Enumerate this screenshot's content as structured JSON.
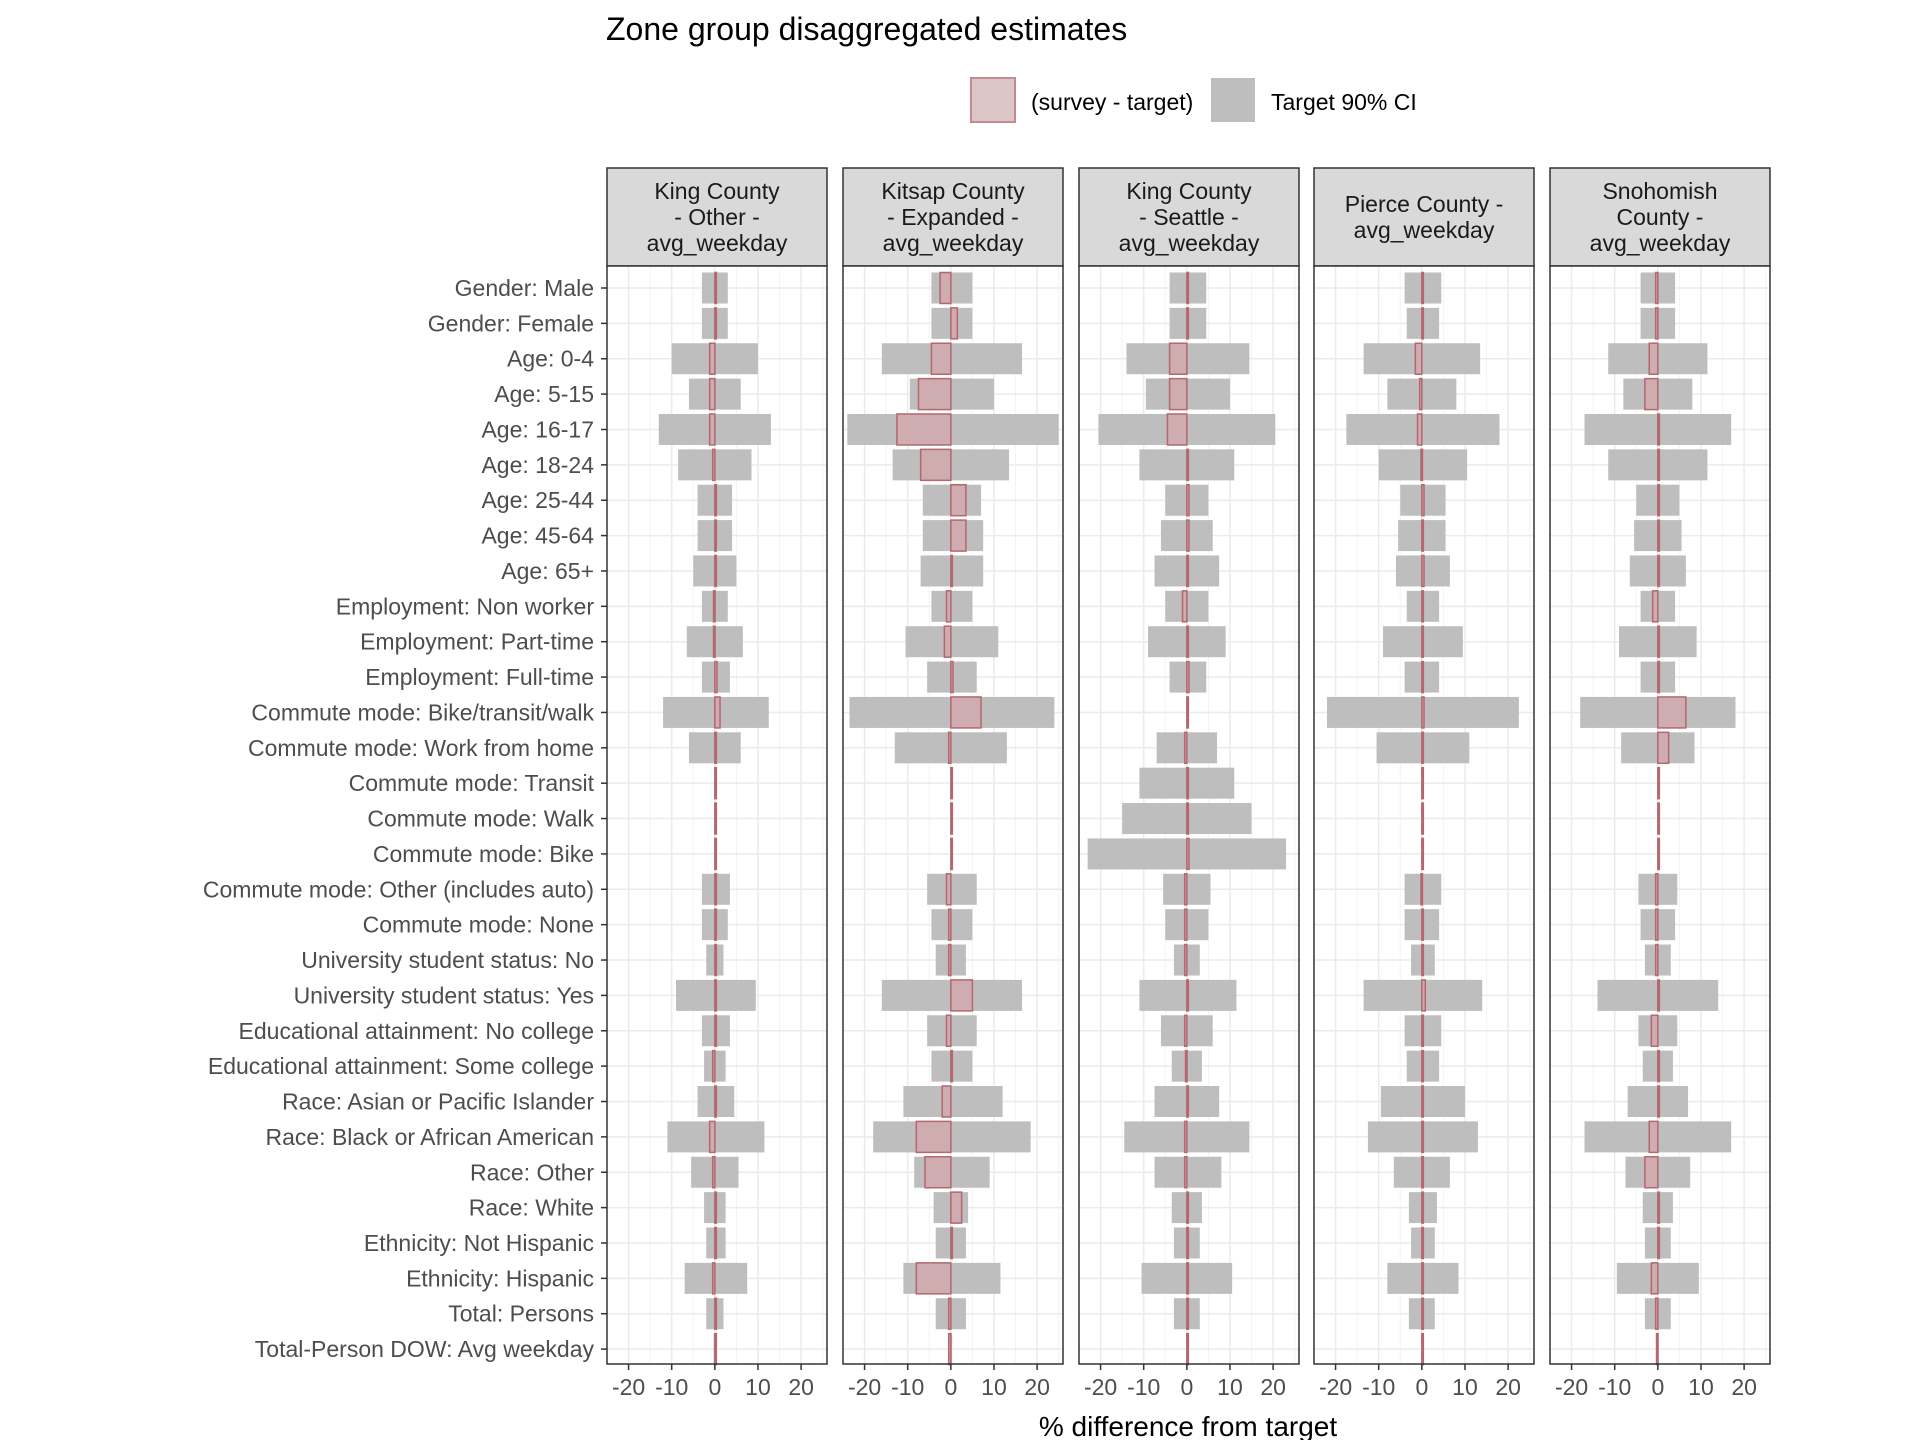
{
  "chart_data": {
    "type": "bar",
    "title": "Zone group disaggregated estimates",
    "xlabel": "% difference from target",
    "ylabel": "",
    "xlim": [
      -25,
      26
    ],
    "x_ticks": [
      -20,
      -10,
      0,
      10,
      20
    ],
    "x_tick_labels": [
      "-20",
      "-10",
      "0",
      "10",
      "20"
    ],
    "grid": true,
    "legend_position": "top",
    "legend": [
      {
        "name": "(survey - target)",
        "fill": "#dcc6c8",
        "stroke": "#c48a90"
      },
      {
        "name": "Target 90% CI",
        "fill": "#bebebe",
        "stroke": "#bebebe"
      }
    ],
    "colors": {
      "ci_fill": "#bebebe",
      "diff_fill": "#d4a5aa",
      "diff_stroke": "#b5666f",
      "strip_fill": "#d9d9d9",
      "grid": "#ebebeb",
      "panel_border": "#333333"
    },
    "categories": [
      "Gender: Male",
      "Gender: Female",
      "Age: 0-4",
      "Age: 5-15",
      "Age: 16-17",
      "Age: 18-24",
      "Age: 25-44",
      "Age: 45-64",
      "Age: 65+",
      "Employment: Non worker",
      "Employment: Part-time",
      "Employment: Full-time",
      "Commute mode: Bike/transit/walk",
      "Commute mode: Work from home",
      "Commute mode: Transit",
      "Commute mode: Walk",
      "Commute mode: Bike",
      "Commute mode: Other (includes auto)",
      "Commute mode: None",
      "University student status: No",
      "University student status: Yes",
      "Educational attainment: No college",
      "Educational attainment: Some college",
      "Race: Asian or Pacific Islander",
      "Race: Black or African American",
      "Race: Other",
      "Race: White",
      "Ethnicity: Not Hispanic",
      "Ethnicity: Hispanic",
      "Total: Persons",
      "Total-Person DOW: Avg weekday"
    ],
    "panels": [
      {
        "label_lines": [
          "King County",
          "- Other -",
          "avg_weekday"
        ],
        "ci": [
          [
            -3,
            3
          ],
          [
            -3,
            3
          ],
          [
            -10,
            10
          ],
          [
            -6,
            6
          ],
          [
            -13,
            13
          ],
          [
            -8.5,
            8.5
          ],
          [
            -4,
            4
          ],
          [
            -4,
            4
          ],
          [
            -5,
            5
          ],
          [
            -3,
            3
          ],
          [
            -6.5,
            6.5
          ],
          [
            -3,
            3.5
          ],
          [
            -12,
            12.5
          ],
          [
            -6,
            6
          ],
          null,
          null,
          null,
          [
            -3,
            3.5
          ],
          [
            -3,
            3
          ],
          [
            -2,
            2
          ],
          [
            -9,
            9.5
          ],
          [
            -3,
            3.5
          ],
          [
            -2.5,
            2.5
          ],
          [
            -4,
            4.5
          ],
          [
            -11,
            11.5
          ],
          [
            -5.5,
            5.5
          ],
          [
            -2.5,
            2.5
          ],
          [
            -2,
            2.5
          ],
          [
            -7,
            7.5
          ],
          [
            -2,
            2
          ],
          [
            -0.3,
            0.3
          ]
        ],
        "diff": [
          0.3,
          0.3,
          -1.2,
          -1.2,
          -1.2,
          -0.5,
          0.3,
          0.3,
          0.2,
          -0.3,
          -0.3,
          0.5,
          1.2,
          0.3,
          0.1,
          0.1,
          0.1,
          0.3,
          0.1,
          0.2,
          0.3,
          0.2,
          -0.5,
          0.3,
          -1.2,
          -0.5,
          0.2,
          0.1,
          -0.5,
          0.1,
          0.1
        ]
      },
      {
        "label_lines": [
          "Kitsap County",
          "- Expanded -",
          "avg_weekday"
        ],
        "ci": [
          [
            -4.5,
            5
          ],
          [
            -4.5,
            5
          ],
          [
            -16,
            16.5
          ],
          [
            -9.5,
            10
          ],
          [
            -24,
            25
          ],
          [
            -13.5,
            13.5
          ],
          [
            -6.5,
            7
          ],
          [
            -6.5,
            7.5
          ],
          [
            -7,
            7.5
          ],
          [
            -4.5,
            5
          ],
          [
            -10.5,
            11
          ],
          [
            -5.5,
            6
          ],
          [
            -23.5,
            24
          ],
          [
            -13,
            13
          ],
          null,
          null,
          null,
          [
            -5.5,
            6
          ],
          [
            -4.5,
            5
          ],
          [
            -3.5,
            3.5
          ],
          [
            -16,
            16.5
          ],
          [
            -5.5,
            6
          ],
          [
            -4.5,
            5
          ],
          [
            -11,
            12
          ],
          [
            -18,
            18.5
          ],
          [
            -8.5,
            9
          ],
          [
            -4,
            4
          ],
          [
            -3.5,
            3.5
          ],
          [
            -11,
            11.5
          ],
          [
            -3.5,
            3.5
          ],
          [
            -0.3,
            0.3
          ]
        ],
        "diff": [
          -2.5,
          1.5,
          -4.5,
          -7.5,
          -12.5,
          -7,
          3.5,
          3.5,
          0.2,
          -1,
          -1.5,
          0.5,
          7,
          -0.5,
          0.1,
          0.1,
          0.1,
          -1,
          -0.5,
          -0.5,
          5,
          -1,
          0.3,
          -2,
          -8,
          -6,
          2.5,
          0.2,
          -8,
          -0.5,
          -0.5
        ]
      },
      {
        "label_lines": [
          "King County",
          "- Seattle -",
          "avg_weekday"
        ],
        "ci": [
          [
            -4,
            4.5
          ],
          [
            -4,
            4.5
          ],
          [
            -14,
            14.5
          ],
          [
            -9.5,
            10
          ],
          [
            -20.5,
            20.5
          ],
          [
            -11,
            11
          ],
          [
            -5,
            5
          ],
          [
            -6,
            6
          ],
          [
            -7.5,
            7.5
          ],
          [
            -5,
            5
          ],
          [
            -9,
            9
          ],
          [
            -4,
            4.5
          ],
          null,
          [
            -7,
            7
          ],
          [
            -11,
            11
          ],
          [
            -15,
            15
          ],
          [
            -23,
            23
          ],
          [
            -5.5,
            5.5
          ],
          [
            -5,
            5
          ],
          [
            -3,
            3
          ],
          [
            -11,
            11.5
          ],
          [
            -6,
            6
          ],
          [
            -3.5,
            3.5
          ],
          [
            -7.5,
            7.5
          ],
          [
            -14.5,
            14.5
          ],
          [
            -7.5,
            8
          ],
          [
            -3.5,
            3.5
          ],
          [
            -3,
            3
          ],
          [
            -10.5,
            10.5
          ],
          [
            -3,
            3
          ],
          null
        ],
        "diff": [
          0.2,
          0.2,
          -4,
          -4,
          -4.5,
          0.3,
          0.5,
          0.5,
          0.2,
          -1,
          0.2,
          0.5,
          0.2,
          -0.5,
          0.3,
          0.3,
          0.5,
          -0.5,
          -0.5,
          -0.5,
          0.3,
          -0.5,
          -0.3,
          0.2,
          -0.5,
          -0.5,
          0.2,
          0.2,
          0.1,
          0.1,
          0.1
        ]
      },
      {
        "label_lines": [
          "Pierce County -",
          "avg_weekday"
        ],
        "ci": [
          [
            -4,
            4.5
          ],
          [
            -3.5,
            4
          ],
          [
            -13.5,
            13.5
          ],
          [
            -8,
            8
          ],
          [
            -17.5,
            18
          ],
          [
            -10,
            10.5
          ],
          [
            -5,
            5.5
          ],
          [
            -5.5,
            5.5
          ],
          [
            -6,
            6.5
          ],
          [
            -3.5,
            4
          ],
          [
            -9,
            9.5
          ],
          [
            -4,
            4
          ],
          [
            -22,
            22.5
          ],
          [
            -10.5,
            11
          ],
          null,
          null,
          null,
          [
            -4,
            4.5
          ],
          [
            -4,
            4
          ],
          [
            -2.5,
            3
          ],
          [
            -13.5,
            14
          ],
          [
            -4,
            4.5
          ],
          [
            -3.5,
            4
          ],
          [
            -9.5,
            10
          ],
          [
            -12.5,
            13
          ],
          [
            -6.5,
            6.5
          ],
          [
            -3,
            3.5
          ],
          [
            -2.5,
            3
          ],
          [
            -8,
            8.5
          ],
          [
            -3,
            3
          ],
          null
        ],
        "diff": [
          0.2,
          0.2,
          -1.5,
          -0.5,
          -1,
          -0.2,
          0.5,
          0.3,
          0.5,
          0.3,
          0.3,
          0.3,
          0.5,
          0.3,
          0.1,
          0.1,
          0.1,
          -0.2,
          0.2,
          0.2,
          0.8,
          0.2,
          0.2,
          0.2,
          0.1,
          0.2,
          0.2,
          0.2,
          0.1,
          0.1,
          0.1
        ]
      },
      {
        "label_lines": [
          "Snohomish",
          "County -",
          "avg_weekday"
        ],
        "ci": [
          [
            -4,
            4
          ],
          [
            -4,
            4
          ],
          [
            -11.5,
            11.5
          ],
          [
            -8,
            8
          ],
          [
            -17,
            17
          ],
          [
            -11.5,
            11.5
          ],
          [
            -5,
            5
          ],
          [
            -5.5,
            5.5
          ],
          [
            -6.5,
            6.5
          ],
          [
            -4,
            4
          ],
          [
            -9,
            9
          ],
          [
            -4,
            4
          ],
          [
            -18,
            18
          ],
          [
            -8.5,
            8.5
          ],
          null,
          null,
          null,
          [
            -4.5,
            4.5
          ],
          [
            -4,
            4
          ],
          [
            -3,
            3
          ],
          [
            -14,
            14
          ],
          [
            -4.5,
            4.5
          ],
          [
            -3.5,
            3.5
          ],
          [
            -7,
            7
          ],
          [
            -17,
            17
          ],
          [
            -7.5,
            7.5
          ],
          [
            -3.5,
            3.5
          ],
          [
            -3,
            3
          ],
          [
            -9.5,
            9.5
          ],
          [
            -3,
            3
          ],
          null
        ],
        "diff": [
          -0.5,
          -0.5,
          -2,
          -3,
          0.2,
          0.2,
          0.3,
          0.3,
          0.3,
          -1.2,
          0.3,
          0.3,
          6.5,
          2.5,
          0.1,
          0.1,
          0.1,
          -0.5,
          -0.5,
          -0.5,
          0.2,
          -1.5,
          0.3,
          0.3,
          -2,
          -3,
          0.3,
          0.3,
          -1.5,
          -0.5,
          -0.3
        ]
      }
    ]
  }
}
